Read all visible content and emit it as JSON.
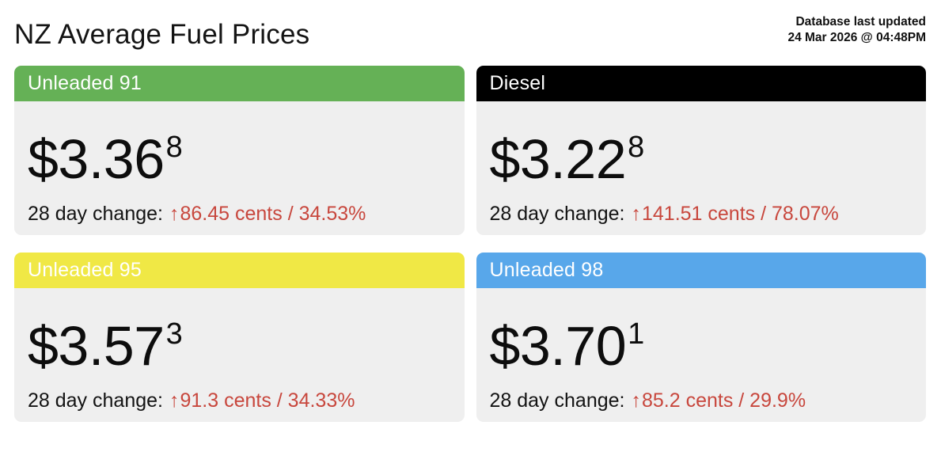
{
  "header": {
    "title": "NZ Average Fuel Prices",
    "updated_line1": "Database last updated",
    "updated_line2": "24 Mar 2026 @ 04:48PM"
  },
  "shared": {
    "change_label": "28 day change:",
    "up_arrow_glyph": "↑"
  },
  "colors": {
    "card_body_bg": "#efefef",
    "change_red": "#c8473d",
    "header_text": "#ffffff"
  },
  "cards": [
    {
      "label": "Unleaded 91",
      "header_color": "#65b156",
      "price_main": "$3.36",
      "price_superscript": "8",
      "change_value": "86.45 cents / 34.53%"
    },
    {
      "label": "Diesel",
      "header_color": "#000000",
      "price_main": "$3.22",
      "price_superscript": "8",
      "change_value": "141.51 cents / 78.07%"
    },
    {
      "label": "Unleaded 95",
      "header_color": "#f0e845",
      "price_main": "$3.57",
      "price_superscript": "3",
      "change_value": "91.3 cents / 34.33%"
    },
    {
      "label": "Unleaded 98",
      "header_color": "#58a7ea",
      "price_main": "$3.70",
      "price_superscript": "1",
      "change_value": "85.2 cents / 29.9%"
    }
  ]
}
